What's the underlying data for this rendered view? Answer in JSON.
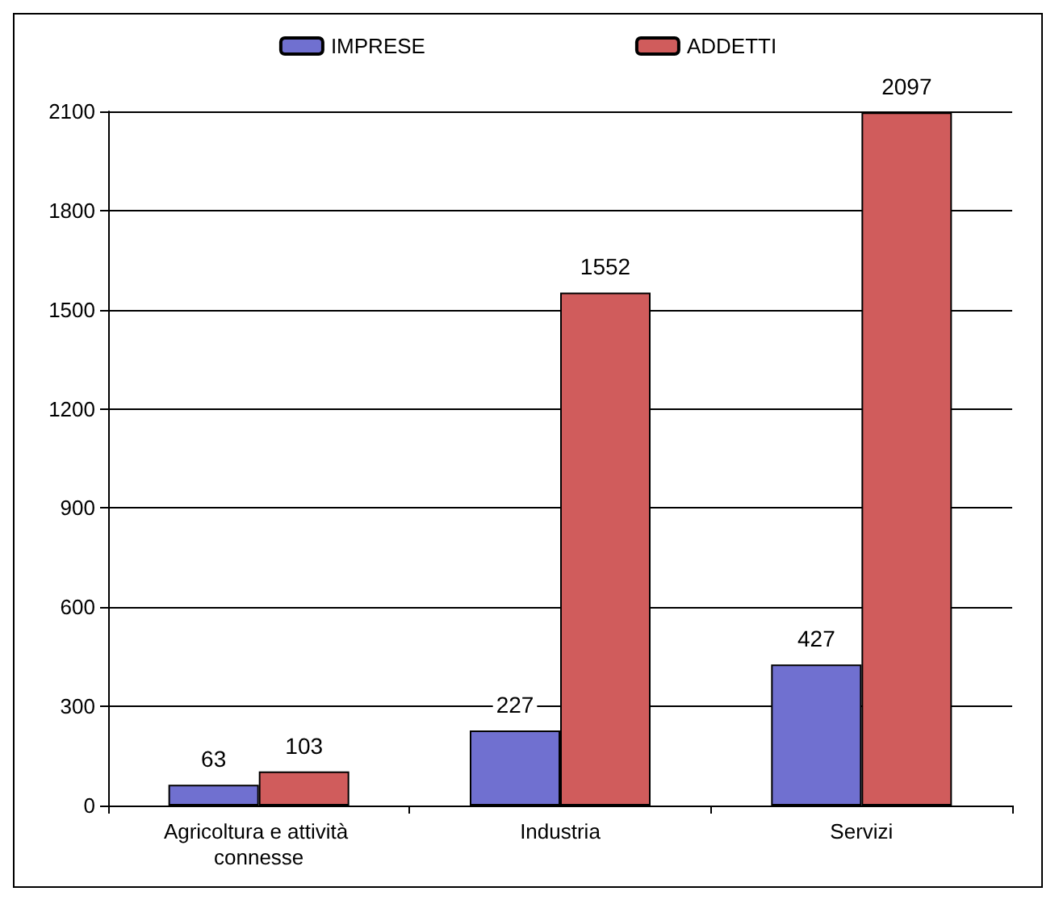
{
  "chart_data": {
    "type": "bar",
    "categories": [
      "Agricoltura e attività connesse",
      "Industria",
      "Servizi"
    ],
    "series": [
      {
        "name": "IMPRESE",
        "color": "#7070d0",
        "values": [
          63,
          227,
          427
        ]
      },
      {
        "name": "ADDETTI",
        "color": "#d05c5c",
        "values": [
          103,
          1552,
          2097
        ]
      }
    ],
    "ylim": [
      0,
      2100
    ],
    "yticks": [
      0,
      300,
      600,
      900,
      1200,
      1500,
      1800,
      2100
    ],
    "grid": "y",
    "legend": "top",
    "data_labels": true
  }
}
